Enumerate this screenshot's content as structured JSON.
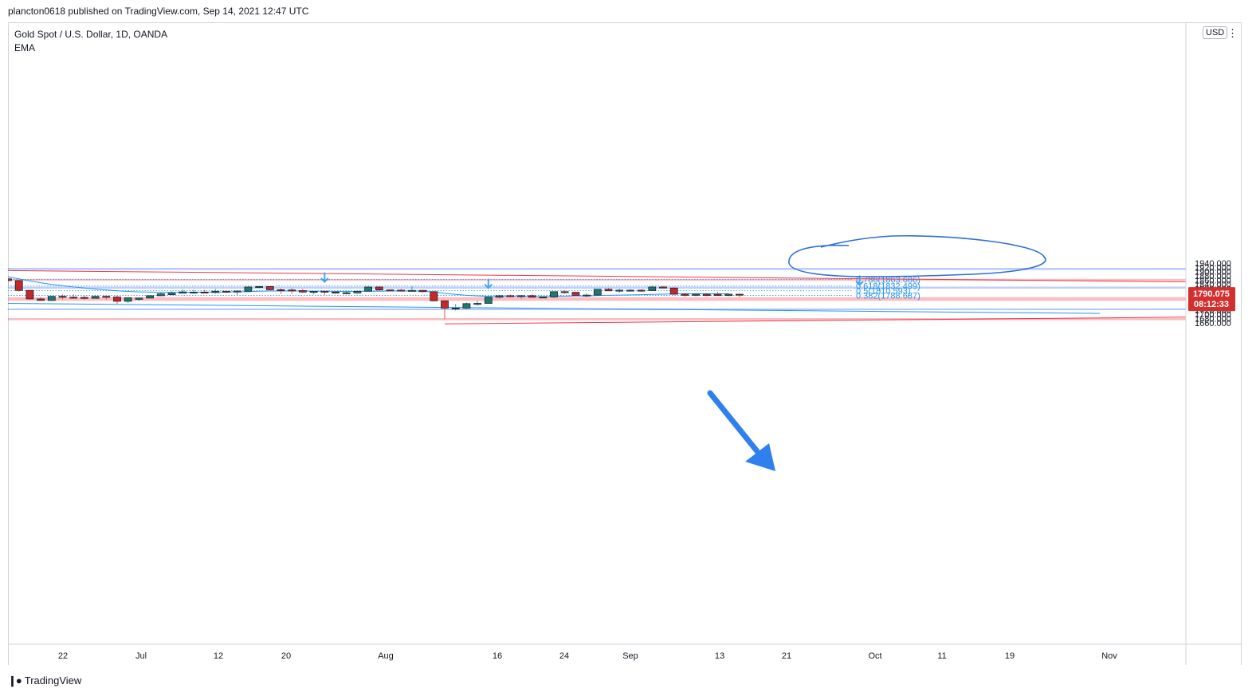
{
  "header": {
    "published": "plancton0618 published on TradingView.com, Sep 14, 2021 12:47 UTC"
  },
  "legend": {
    "symbol": "Gold Spot / U.S. Dollar, 1D, OANDA",
    "indicator": "EMA"
  },
  "currency": "USD",
  "price_label": {
    "price": "1790.075",
    "countdown": "08:12:33"
  },
  "brand": {
    "name": "TradingView"
  },
  "colors": {
    "up": "#26a69a",
    "down": "#ef5350",
    "ema": "#2196f3",
    "resistance_zone": "#f23645",
    "support_zone": "#2962ff"
  },
  "chart_data": {
    "type": "candlestick",
    "title": "Gold Spot / U.S. Dollar, 1D, OANDA",
    "y_ticks": [
      "1920.000",
      "1900.000",
      "1880.000",
      "1860.000",
      "1840.000",
      "1820.000",
      "1800.000",
      "1780.000",
      "1760.000",
      "1740.000",
      "1720.000",
      "1700.000",
      "1680.000",
      "1660.000"
    ],
    "x_ticks": [
      "22",
      "Jul",
      "12",
      "20",
      "Aug",
      "16",
      "24",
      "Sep",
      "13",
      "21",
      "Oct",
      "11",
      "19",
      "Nov"
    ],
    "ylim": [
      1655,
      1940
    ],
    "candles": [
      {
        "o": 1866,
        "h": 1868,
        "l": 1836,
        "c": 1858
      },
      {
        "o": 1858,
        "h": 1860,
        "l": 1806,
        "c": 1812
      },
      {
        "o": 1812,
        "h": 1814,
        "l": 1768,
        "c": 1772
      },
      {
        "o": 1772,
        "h": 1780,
        "l": 1763,
        "c": 1765
      },
      {
        "o": 1765,
        "h": 1787,
        "l": 1763,
        "c": 1784
      },
      {
        "o": 1784,
        "h": 1792,
        "l": 1769,
        "c": 1780
      },
      {
        "o": 1780,
        "h": 1794,
        "l": 1773,
        "c": 1779
      },
      {
        "o": 1779,
        "h": 1788,
        "l": 1769,
        "c": 1775
      },
      {
        "o": 1775,
        "h": 1791,
        "l": 1774,
        "c": 1784
      },
      {
        "o": 1784,
        "h": 1786,
        "l": 1768,
        "c": 1781
      },
      {
        "o": 1781,
        "h": 1786,
        "l": 1750,
        "c": 1761
      },
      {
        "o": 1761,
        "h": 1780,
        "l": 1753,
        "c": 1777
      },
      {
        "o": 1770,
        "h": 1778,
        "l": 1764,
        "c": 1776
      },
      {
        "o": 1776,
        "h": 1789,
        "l": 1775,
        "c": 1787
      },
      {
        "o": 1787,
        "h": 1801,
        "l": 1785,
        "c": 1796
      },
      {
        "o": 1792,
        "h": 1807,
        "l": 1790,
        "c": 1799
      },
      {
        "o": 1799,
        "h": 1816,
        "l": 1796,
        "c": 1805
      },
      {
        "o": 1803,
        "h": 1812,
        "l": 1795,
        "c": 1804
      },
      {
        "o": 1804,
        "h": 1815,
        "l": 1800,
        "c": 1802
      },
      {
        "o": 1802,
        "h": 1818,
        "l": 1797,
        "c": 1808
      },
      {
        "o": 1808,
        "h": 1812,
        "l": 1799,
        "c": 1807
      },
      {
        "o": 1807,
        "h": 1812,
        "l": 1790,
        "c": 1809
      },
      {
        "o": 1808,
        "h": 1831,
        "l": 1804,
        "c": 1828
      },
      {
        "o": 1828,
        "h": 1834,
        "l": 1821,
        "c": 1830
      },
      {
        "o": 1830,
        "h": 1832,
        "l": 1812,
        "c": 1815
      },
      {
        "o": 1815,
        "h": 1822,
        "l": 1795,
        "c": 1814
      },
      {
        "o": 1814,
        "h": 1822,
        "l": 1796,
        "c": 1811
      },
      {
        "o": 1811,
        "h": 1819,
        "l": 1800,
        "c": 1804
      },
      {
        "o": 1804,
        "h": 1807,
        "l": 1793,
        "c": 1807
      },
      {
        "o": 1808,
        "h": 1811,
        "l": 1789,
        "c": 1804
      },
      {
        "o": 1804,
        "h": 1807,
        "l": 1796,
        "c": 1800
      },
      {
        "o": 1800,
        "h": 1811,
        "l": 1794,
        "c": 1801
      },
      {
        "o": 1800,
        "h": 1810,
        "l": 1796,
        "c": 1808
      },
      {
        "o": 1808,
        "h": 1832,
        "l": 1807,
        "c": 1828
      },
      {
        "o": 1828,
        "h": 1831,
        "l": 1810,
        "c": 1814
      },
      {
        "o": 1814,
        "h": 1817,
        "l": 1807,
        "c": 1813
      },
      {
        "o": 1813,
        "h": 1819,
        "l": 1807,
        "c": 1812
      },
      {
        "o": 1811,
        "h": 1832,
        "l": 1806,
        "c": 1812
      },
      {
        "o": 1812,
        "h": 1815,
        "l": 1803,
        "c": 1806
      },
      {
        "o": 1806,
        "h": 1809,
        "l": 1761,
        "c": 1763
      },
      {
        "o": 1763,
        "h": 1765,
        "l": 1677,
        "c": 1729
      },
      {
        "o": 1729,
        "h": 1748,
        "l": 1717,
        "c": 1729
      },
      {
        "o": 1729,
        "h": 1755,
        "l": 1723,
        "c": 1750
      },
      {
        "o": 1750,
        "h": 1764,
        "l": 1741,
        "c": 1751
      },
      {
        "o": 1751,
        "h": 1782,
        "l": 1750,
        "c": 1780
      },
      {
        "o": 1780,
        "h": 1789,
        "l": 1774,
        "c": 1787
      },
      {
        "o": 1787,
        "h": 1793,
        "l": 1780,
        "c": 1786
      },
      {
        "o": 1786,
        "h": 1791,
        "l": 1773,
        "c": 1787
      },
      {
        "o": 1787,
        "h": 1795,
        "l": 1777,
        "c": 1780
      },
      {
        "o": 1780,
        "h": 1783,
        "l": 1777,
        "c": 1781
      },
      {
        "o": 1781,
        "h": 1806,
        "l": 1776,
        "c": 1806
      },
      {
        "o": 1806,
        "h": 1812,
        "l": 1796,
        "c": 1804
      },
      {
        "o": 1803,
        "h": 1805,
        "l": 1785,
        "c": 1789
      },
      {
        "o": 1789,
        "h": 1797,
        "l": 1781,
        "c": 1790
      },
      {
        "o": 1790,
        "h": 1818,
        "l": 1786,
        "c": 1817
      },
      {
        "o": 1817,
        "h": 1823,
        "l": 1809,
        "c": 1810
      },
      {
        "o": 1810,
        "h": 1819,
        "l": 1801,
        "c": 1813
      },
      {
        "o": 1813,
        "h": 1818,
        "l": 1809,
        "c": 1813
      },
      {
        "o": 1813,
        "h": 1817,
        "l": 1805,
        "c": 1809
      },
      {
        "o": 1811,
        "h": 1834,
        "l": 1810,
        "c": 1828
      },
      {
        "o": 1828,
        "h": 1832,
        "l": 1821,
        "c": 1823
      },
      {
        "o": 1823,
        "h": 1827,
        "l": 1791,
        "c": 1794
      },
      {
        "o": 1794,
        "h": 1801,
        "l": 1783,
        "c": 1789
      },
      {
        "o": 1789,
        "h": 1800,
        "l": 1784,
        "c": 1794
      },
      {
        "o": 1794,
        "h": 1800,
        "l": 1785,
        "c": 1788
      },
      {
        "o": 1794,
        "h": 1804,
        "l": 1787,
        "c": 1788
      },
      {
        "o": 1788,
        "h": 1799,
        "l": 1785,
        "c": 1794
      },
      {
        "o": 1794,
        "h": 1796,
        "l": 1780,
        "c": 1790
      }
    ],
    "ema": [
      1876,
      1866,
      1856,
      1848,
      1840,
      1834,
      1828,
      1823,
      1818,
      1814,
      1810,
      1807,
      1805,
      1804,
      1803,
      1803,
      1803,
      1803,
      1804,
      1804,
      1805,
      1805,
      1806,
      1808,
      1809,
      1809,
      1809,
      1809,
      1808,
      1808,
      1807,
      1807,
      1807,
      1808,
      1808,
      1809,
      1809,
      1809,
      1808,
      1805,
      1798,
      1793,
      1789,
      1786,
      1784,
      1784,
      1784,
      1784,
      1783,
      1783,
      1784,
      1785,
      1786,
      1786,
      1788,
      1789,
      1790,
      1791,
      1792,
      1793,
      1794,
      1796,
      1796,
      1796,
      1796,
      1796,
      1796
    ],
    "fibonacci": [
      {
        "level": "0.786",
        "label": "0.786(1863.686)",
        "value": 1863.686
      },
      {
        "level": "0.618",
        "label": "0.618(1832.499)",
        "value": 1832.499
      },
      {
        "level": "0.5",
        "label": "0.5(1810.593)",
        "value": 1810.593
      },
      {
        "level": "0.382",
        "label": "0.382(1788.687)",
        "value": 1788.687
      }
    ],
    "zones": [
      {
        "kind": "support",
        "from": 1909,
        "to": 1916
      },
      {
        "kind": "resistance",
        "from": 1857,
        "to": 1866
      },
      {
        "kind": "support",
        "from": 1822,
        "to": 1828
      },
      {
        "kind": "resistance",
        "from": 1763,
        "to": 1780
      },
      {
        "kind": "support",
        "from": 1721,
        "to": 1726
      },
      {
        "kind": "resistance",
        "from": 1672,
        "to": 1682
      }
    ],
    "trendlines": [
      {
        "color": "red",
        "from": {
          "bar": 0,
          "price": 1905
        },
        "to": {
          "bar": 147,
          "price": 1833
        }
      },
      {
        "color": "red",
        "from": {
          "bar": 40,
          "price": 1655
        },
        "to": {
          "bar": 147,
          "price": 1705
        }
      },
      {
        "color": "blue",
        "from": {
          "bar": 0,
          "price": 1751
        },
        "to": {
          "bar": 100,
          "price": 1704
        }
      }
    ],
    "markers": [
      {
        "type": "down-arrow",
        "bar": 29
      },
      {
        "type": "down-arrow",
        "bar": 44
      },
      {
        "type": "down-arrow",
        "bar": 78
      }
    ],
    "current_price": 1790.075
  }
}
